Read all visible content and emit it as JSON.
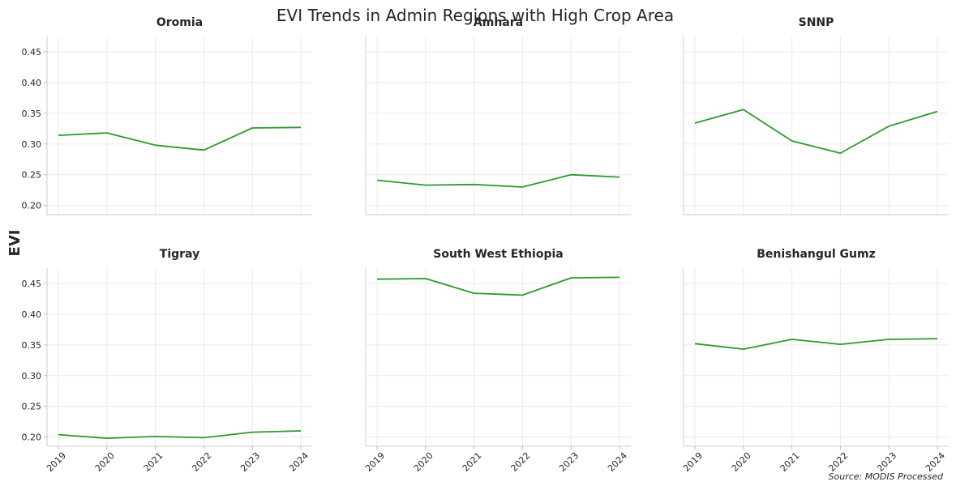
{
  "figure": {
    "title": "EVI Trends in Admin Regions with High Crop Area",
    "ylabel": "EVI",
    "source": "Source: MODIS Processed",
    "line_color": "#2e9a2e",
    "grid": true
  },
  "chart_data": [
    {
      "type": "line",
      "title": "Oromia",
      "x": [
        "2019",
        "2020",
        "2021",
        "2022",
        "2023",
        "2024"
      ],
      "values": [
        0.314,
        0.318,
        0.298,
        0.29,
        0.326,
        0.327
      ],
      "ylim": [
        0.185,
        0.475
      ],
      "yticks": [
        "0.20",
        "0.25",
        "0.30",
        "0.35",
        "0.40",
        "0.45"
      ]
    },
    {
      "type": "line",
      "title": "Amhara",
      "x": [
        "2019",
        "2020",
        "2021",
        "2022",
        "2023",
        "2024"
      ],
      "values": [
        0.241,
        0.233,
        0.234,
        0.23,
        0.25,
        0.246
      ],
      "ylim": [
        0.185,
        0.475
      ]
    },
    {
      "type": "line",
      "title": "SNNP",
      "x": [
        "2019",
        "2020",
        "2021",
        "2022",
        "2023",
        "2024"
      ],
      "values": [
        0.334,
        0.356,
        0.305,
        0.285,
        0.329,
        0.353
      ],
      "ylim": [
        0.185,
        0.475
      ]
    },
    {
      "type": "line",
      "title": "Tigray",
      "x": [
        "2019",
        "2020",
        "2021",
        "2022",
        "2023",
        "2024"
      ],
      "values": [
        0.204,
        0.198,
        0.201,
        0.199,
        0.208,
        0.21
      ],
      "ylim": [
        0.185,
        0.475
      ],
      "yticks": [
        "0.20",
        "0.25",
        "0.30",
        "0.35",
        "0.40",
        "0.45"
      ]
    },
    {
      "type": "line",
      "title": "South West Ethiopia",
      "x": [
        "2019",
        "2020",
        "2021",
        "2022",
        "2023",
        "2024"
      ],
      "values": [
        0.457,
        0.458,
        0.434,
        0.431,
        0.459,
        0.46
      ],
      "ylim": [
        0.185,
        0.475
      ]
    },
    {
      "type": "line",
      "title": "Benishangul Gumz",
      "x": [
        "2019",
        "2020",
        "2021",
        "2022",
        "2023",
        "2024"
      ],
      "values": [
        0.352,
        0.343,
        0.359,
        0.351,
        0.359,
        0.36
      ],
      "ylim": [
        0.185,
        0.475
      ]
    }
  ]
}
